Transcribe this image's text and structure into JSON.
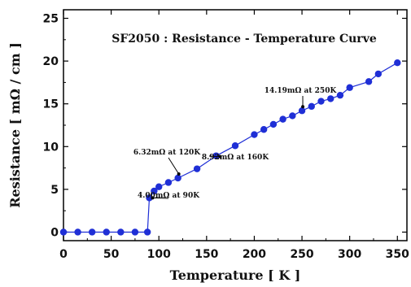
{
  "chart_data": {
    "type": "scatter",
    "title": "SF2050 : Resistance - Temperature Curve",
    "xlabel": "Temperature [ K ]",
    "ylabel": "Resistance [ mΩ / cm ]",
    "xlim": [
      0,
      360
    ],
    "ylim": [
      -1,
      26
    ],
    "x_ticks": [
      0,
      50,
      100,
      150,
      200,
      250,
      300,
      350
    ],
    "y_ticks": [
      0,
      5,
      10,
      15,
      20,
      25
    ],
    "grid": false,
    "series": [
      {
        "color": "#1f2fd6",
        "x": [
          0,
          15,
          30,
          45,
          60,
          75,
          88,
          90,
          95,
          100,
          110,
          120,
          140,
          160,
          180,
          200,
          210,
          220,
          230,
          240,
          250,
          260,
          270,
          280,
          290,
          300,
          320,
          330,
          350
        ],
        "y": [
          0,
          0,
          0,
          0,
          0,
          0,
          0,
          4.0,
          4.8,
          5.3,
          5.8,
          6.32,
          7.4,
          8.92,
          10.1,
          11.4,
          12.0,
          12.6,
          13.2,
          13.6,
          14.19,
          14.7,
          15.3,
          15.6,
          16.0,
          16.9,
          17.6,
          18.5,
          19.8
        ]
      }
    ],
    "annotations": [
      {
        "text": "4.00mΩ at 90K",
        "x": 90,
        "y": 4.0
      },
      {
        "text": "6.32mΩ at 120K",
        "x": 120,
        "y": 6.32
      },
      {
        "text": "8.92mΩ at 160K",
        "x": 160,
        "y": 8.92
      },
      {
        "text": "14.19mΩ at 250K",
        "x": 250,
        "y": 14.19
      }
    ]
  }
}
